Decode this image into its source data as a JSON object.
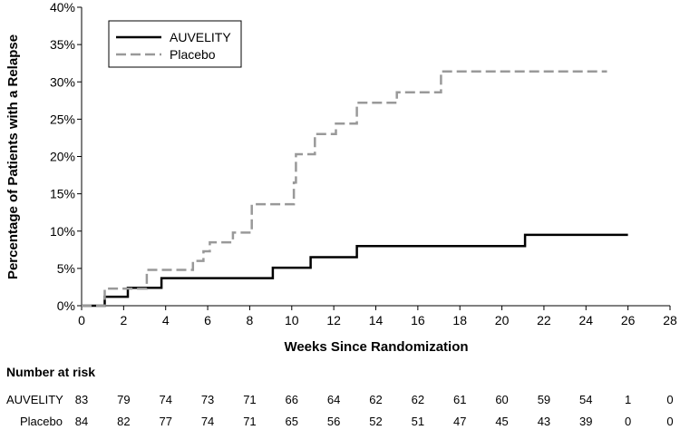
{
  "chart_data": {
    "type": "line",
    "xlabel": "Weeks Since Randomization",
    "ylabel": "Percentage of Patients with a Relapse",
    "xlim": [
      0,
      28
    ],
    "ylim": [
      0,
      40
    ],
    "x_ticks": [
      "0",
      "2",
      "4",
      "6",
      "8",
      "10",
      "12",
      "14",
      "16",
      "18",
      "20",
      "22",
      "24",
      "26",
      "28"
    ],
    "y_ticks": [
      "0%",
      "5%",
      "10%",
      "15%",
      "20%",
      "25%",
      "30%",
      "35%",
      "40%"
    ],
    "legend_position": "top-left",
    "series": [
      {
        "name": "AUVELITY",
        "color": "#000000",
        "style": "solid",
        "steps": [
          [
            0,
            0
          ],
          [
            1.1,
            0
          ],
          [
            1.1,
            1.2
          ],
          [
            2.2,
            1.2
          ],
          [
            2.2,
            2.4
          ],
          [
            3.8,
            2.4
          ],
          [
            3.8,
            3.7
          ],
          [
            9.1,
            3.7
          ],
          [
            9.1,
            5.1
          ],
          [
            10.9,
            5.1
          ],
          [
            10.9,
            6.5
          ],
          [
            13.1,
            6.5
          ],
          [
            13.1,
            8.0
          ],
          [
            21.1,
            8.0
          ],
          [
            21.1,
            9.5
          ],
          [
            26.0,
            9.5
          ]
        ]
      },
      {
        "name": "Placebo",
        "color": "#999999",
        "style": "dashed",
        "steps": [
          [
            0,
            0
          ],
          [
            1.1,
            0
          ],
          [
            1.1,
            2.3
          ],
          [
            3.1,
            2.3
          ],
          [
            3.1,
            4.8
          ],
          [
            5.3,
            4.8
          ],
          [
            5.3,
            6.0
          ],
          [
            5.8,
            6.0
          ],
          [
            5.8,
            7.3
          ],
          [
            6.1,
            7.3
          ],
          [
            6.1,
            8.5
          ],
          [
            7.2,
            8.5
          ],
          [
            7.2,
            9.8
          ],
          [
            8.1,
            9.8
          ],
          [
            8.1,
            13.6
          ],
          [
            10.1,
            13.6
          ],
          [
            10.1,
            16.5
          ],
          [
            10.2,
            16.5
          ],
          [
            10.2,
            20.3
          ],
          [
            11.1,
            20.3
          ],
          [
            11.1,
            23.0
          ],
          [
            12.1,
            23.0
          ],
          [
            12.1,
            24.4
          ],
          [
            13.1,
            24.4
          ],
          [
            13.1,
            27.2
          ],
          [
            15.0,
            27.2
          ],
          [
            15.0,
            28.6
          ],
          [
            17.1,
            28.6
          ],
          [
            17.1,
            31.4
          ],
          [
            25.0,
            31.4
          ]
        ]
      }
    ],
    "risk_table": {
      "title": "Number at risk",
      "weeks": [
        0,
        2,
        4,
        6,
        8,
        10,
        12,
        14,
        16,
        18,
        20,
        22,
        24,
        26,
        28
      ],
      "rows": [
        {
          "label": "AUVELITY",
          "values": [
            "83",
            "79",
            "74",
            "73",
            "71",
            "66",
            "64",
            "62",
            "62",
            "61",
            "60",
            "59",
            "54",
            "1",
            "0"
          ]
        },
        {
          "label": "Placebo",
          "values": [
            "84",
            "82",
            "77",
            "74",
            "71",
            "65",
            "56",
            "52",
            "51",
            "47",
            "45",
            "43",
            "39",
            "0",
            "0"
          ]
        }
      ]
    }
  }
}
